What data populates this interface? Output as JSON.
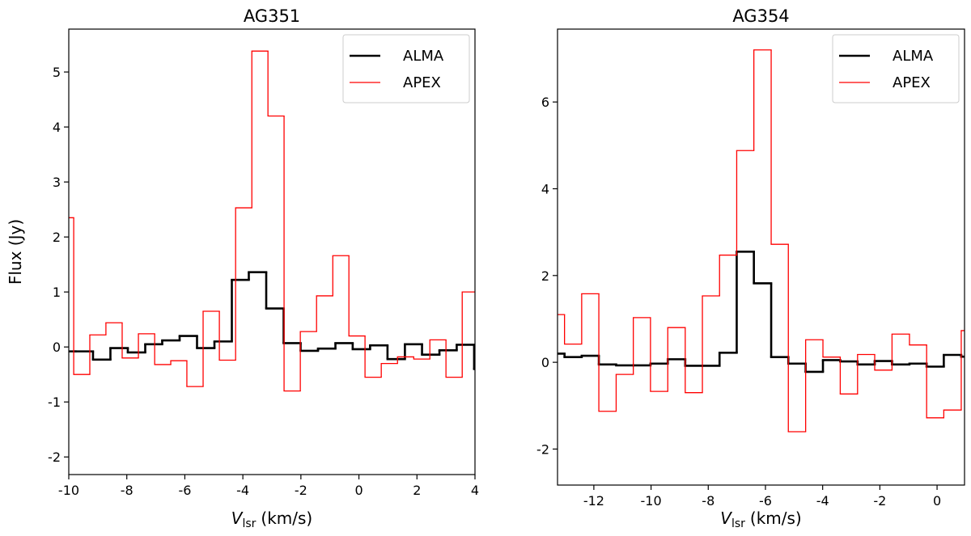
{
  "chart_data": [
    {
      "type": "line",
      "drawstyle": "steps-mid",
      "title": "AG351",
      "xlabel": {
        "symbol": "V",
        "subscript": "lsr",
        "unit": "(km/s)"
      },
      "ylabel": "Flux (Jy)",
      "xlim": [
        -10,
        4
      ],
      "ylim": [
        -2.32,
        5.78
      ],
      "xticks": [
        -10,
        -8,
        -6,
        -4,
        -2,
        0,
        2,
        4
      ],
      "yticks": [
        -2,
        -1,
        0,
        1,
        2,
        3,
        4,
        5
      ],
      "legend": "upper right",
      "series": [
        {
          "name": "ALMA",
          "color": "#000000",
          "linewidth": 2,
          "x": [
            -10.06,
            -9.47,
            -8.86,
            -8.27,
            -7.66,
            -7.07,
            -6.49,
            -5.87,
            -5.29,
            -4.67,
            -4.09,
            -3.5,
            -2.89,
            -2.3,
            -1.72,
            -1.1,
            -0.52,
            0.09,
            0.68,
            1.29,
            1.88,
            2.47,
            3.08,
            3.66,
            4.28
          ],
          "values": [
            -0.08,
            -0.08,
            -0.23,
            -0.02,
            -0.1,
            0.05,
            0.12,
            0.2,
            -0.02,
            0.1,
            1.22,
            1.36,
            0.7,
            0.07,
            -0.07,
            -0.03,
            0.07,
            -0.04,
            0.03,
            -0.22,
            0.05,
            -0.14,
            -0.06,
            0.04,
            -0.4
          ]
        },
        {
          "name": "APEX",
          "color": "#ff0000",
          "linewidth": 1,
          "x": [
            -10.11,
            -9.55,
            -9.0,
            -8.44,
            -7.88,
            -7.32,
            -6.76,
            -6.21,
            -5.65,
            -5.09,
            -4.53,
            -3.97,
            -3.41,
            -2.86,
            -2.3,
            -1.74,
            -1.18,
            -0.62,
            -0.07,
            0.49,
            1.05,
            1.61,
            2.17,
            2.72,
            3.28,
            3.84
          ],
          "values": [
            2.35,
            -0.5,
            0.22,
            0.44,
            -0.2,
            0.24,
            -0.32,
            -0.25,
            -0.72,
            0.65,
            -0.24,
            2.53,
            5.38,
            4.2,
            -0.8,
            0.28,
            0.93,
            1.66,
            0.2,
            -0.55,
            -0.3,
            -0.18,
            -0.22,
            0.13,
            -0.55,
            1.0
          ]
        }
      ]
    },
    {
      "type": "line",
      "drawstyle": "steps-mid",
      "title": "AG354",
      "xlabel": {
        "symbol": "V",
        "subscript": "lsr",
        "unit": "(km/s)"
      },
      "xlim": [
        -13.27,
        0.96
      ],
      "ylim": [
        -2.83,
        7.68
      ],
      "xticks": [
        -12,
        -10,
        -8,
        -6,
        -4,
        -2,
        0
      ],
      "yticks": [
        -2,
        0,
        2,
        4,
        6
      ],
      "legend": "upper right",
      "series": [
        {
          "name": "ALMA",
          "color": "#000000",
          "linewidth": 2,
          "x": [
            -13.33,
            -12.72,
            -12.13,
            -11.52,
            -10.92,
            -10.32,
            -9.72,
            -9.11,
            -8.5,
            -7.91,
            -7.3,
            -6.71,
            -6.1,
            -5.5,
            -4.9,
            -4.29,
            -3.69,
            -3.08,
            -2.48,
            -1.88,
            -1.27,
            -0.66,
            -0.07,
            0.54,
            1.15
          ],
          "values": [
            0.2,
            0.12,
            0.15,
            -0.05,
            -0.07,
            -0.07,
            -0.03,
            0.07,
            -0.08,
            -0.08,
            0.22,
            2.55,
            1.82,
            0.12,
            -0.03,
            -0.22,
            0.05,
            0.02,
            -0.05,
            0.03,
            -0.05,
            -0.03,
            -0.1,
            0.17,
            0.13
          ]
        },
        {
          "name": "APEX",
          "color": "#ff0000",
          "linewidth": 1,
          "x": [
            -13.33,
            -12.72,
            -12.13,
            -11.52,
            -10.92,
            -10.32,
            -9.72,
            -9.11,
            -8.5,
            -7.91,
            -7.3,
            -6.71,
            -6.1,
            -5.5,
            -4.9,
            -4.29,
            -3.69,
            -3.08,
            -2.48,
            -1.88,
            -1.27,
            -0.66,
            -0.07,
            0.54,
            1.15
          ],
          "values": [
            1.1,
            0.42,
            1.58,
            -1.13,
            -0.28,
            1.03,
            -0.67,
            0.8,
            -0.7,
            1.53,
            2.47,
            4.88,
            7.2,
            2.72,
            -1.6,
            0.52,
            0.12,
            -0.73,
            0.18,
            -0.18,
            0.65,
            0.4,
            -1.28,
            -1.1,
            0.73
          ]
        }
      ]
    }
  ]
}
